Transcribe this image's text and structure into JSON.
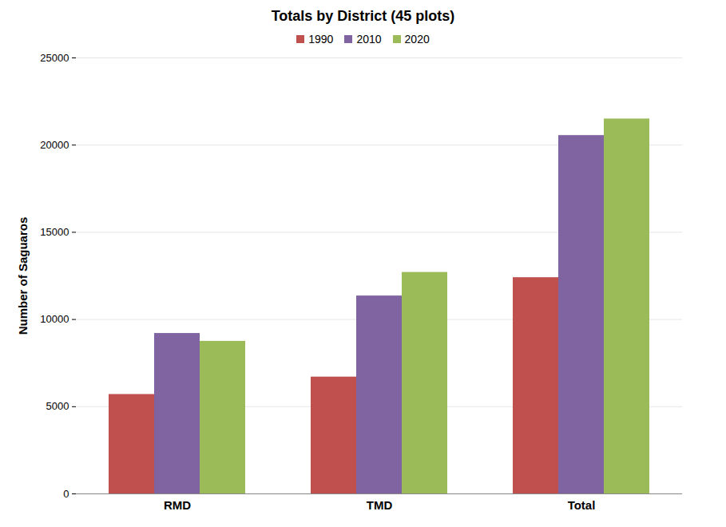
{
  "chart_data": {
    "type": "bar",
    "title": "Totals by District (45 plots)",
    "y_label": "Number of Saguaros",
    "categories": [
      "RMD",
      "TMD",
      "Total"
    ],
    "series": [
      {
        "name": "1990",
        "color": "#c0504d",
        "values": [
          5700,
          6700,
          12400
        ]
      },
      {
        "name": "2010",
        "color": "#8064a2",
        "values": [
          9200,
          11350,
          20550
        ]
      },
      {
        "name": "2020",
        "color": "#9bbb59",
        "values": [
          8750,
          12700,
          21500
        ]
      }
    ],
    "ylim": [
      0,
      25000
    ],
    "yticks": [
      0,
      5000,
      10000,
      15000,
      20000,
      25000
    ],
    "grid": true,
    "legend": "top"
  }
}
